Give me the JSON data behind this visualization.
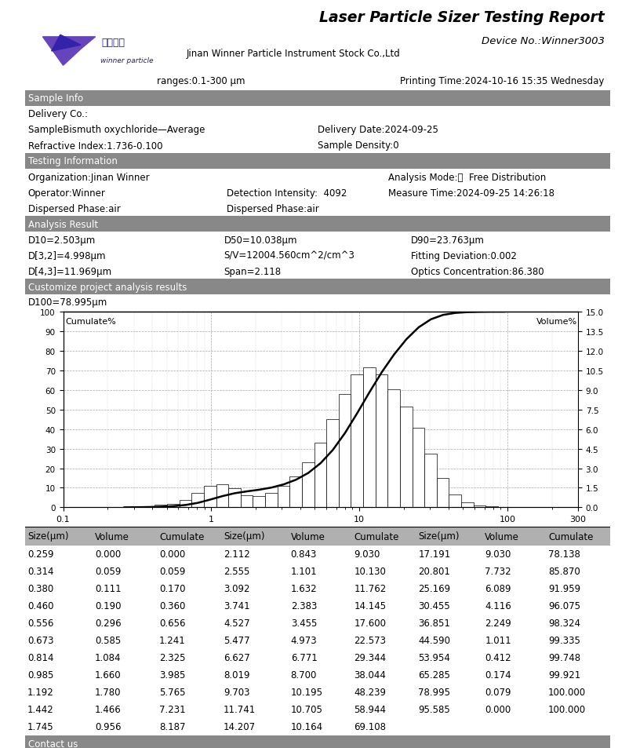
{
  "title": "Laser Particle Sizer Testing Report",
  "device_no": "Device No.:Winner3003",
  "company": "Jinan Winner Particle Instrument Stock Co.,Ltd",
  "ranges": "ranges:0.1-300 μm",
  "printing_time": "Printing Time:2024-10-16 15:35 Wednesday",
  "section_sample": "Sample Info",
  "delivery_co": "Delivery Co.:",
  "sample_name": "SampleBismuth oxychloride—Average",
  "delivery_date": "Delivery Date:2024-09-25",
  "refractive_index": "Refractive Index:1.736-0.100",
  "sample_density": "Sample Density:0",
  "section_testing": "Testing Information",
  "organization": "Organization:Jinan Winner",
  "analysis_mode": "Analysis Mode:：  Free Distribution",
  "operator": "Operator:Winner",
  "detection_intensity": "Detection Intensity:  4092",
  "measure_time": "Measure Time:2024-09-25 14:26:18",
  "dispersed_phase1": "Dispersed Phase:air",
  "dispersed_phase2": "Dispersed Phase:air",
  "section_analysis": "Analysis Result",
  "d10": "D10=2.503μm",
  "d50": "D50=10.038μm",
  "d90": "D90=23.763μm",
  "d32": "D[3,2]=4.998μm",
  "sv": "S/V=12004.560cm^2/cm^3",
  "fitting_deviation": "Fitting Deviation:0.002",
  "d43": "D[4,3]=11.969μm",
  "span": "Span=2.118",
  "optics_concentration": "Optics Concentration:86.380",
  "section_customize": "Customize project analysis results",
  "d100": "D100=78.995μm",
  "section_contact": "Contact us",
  "header_bg": "#888888",
  "sizes": [
    0.259,
    0.314,
    0.38,
    0.46,
    0.556,
    0.673,
    0.814,
    0.985,
    1.192,
    1.442,
    1.745,
    2.112,
    2.555,
    3.092,
    3.741,
    4.527,
    5.477,
    6.627,
    8.019,
    9.703,
    11.741,
    14.207,
    17.191,
    20.801,
    25.169,
    30.455,
    36.851,
    44.59,
    53.954,
    65.285,
    78.995,
    95.585
  ],
  "volumes": [
    0.0,
    0.059,
    0.111,
    0.19,
    0.296,
    0.585,
    1.084,
    1.66,
    1.78,
    1.466,
    0.956,
    0.843,
    1.101,
    1.632,
    2.383,
    3.455,
    4.973,
    6.771,
    8.7,
    10.195,
    10.705,
    10.164,
    9.03,
    7.732,
    6.089,
    4.116,
    2.249,
    1.011,
    0.412,
    0.174,
    0.079,
    0.0
  ],
  "cumulates": [
    0.0,
    0.059,
    0.17,
    0.36,
    0.656,
    1.241,
    2.325,
    3.985,
    5.765,
    7.231,
    8.187,
    9.03,
    10.13,
    11.762,
    14.145,
    17.6,
    22.573,
    29.344,
    38.044,
    48.239,
    58.944,
    69.108,
    78.138,
    85.87,
    91.959,
    96.075,
    98.324,
    99.335,
    99.748,
    99.921,
    100.0,
    100.0
  ],
  "col_headers": [
    "Size(μm)",
    "Volume",
    "Cumulate",
    "Size(μm)",
    "Volume",
    "Cumulate",
    "Size(μm)",
    "Volume",
    "Cumulate"
  ],
  "table_data": [
    [
      [
        "0.259",
        "0.000",
        "0.000"
      ],
      [
        "2.112",
        "0.843",
        "9.030"
      ],
      [
        "17.191",
        "9.030",
        "78.138"
      ]
    ],
    [
      [
        "0.314",
        "0.059",
        "0.059"
      ],
      [
        "2.555",
        "1.101",
        "10.130"
      ],
      [
        "20.801",
        "7.732",
        "85.870"
      ]
    ],
    [
      [
        "0.380",
        "0.111",
        "0.170"
      ],
      [
        "3.092",
        "1.632",
        "11.762"
      ],
      [
        "25.169",
        "6.089",
        "91.959"
      ]
    ],
    [
      [
        "0.460",
        "0.190",
        "0.360"
      ],
      [
        "3.741",
        "2.383",
        "14.145"
      ],
      [
        "30.455",
        "4.116",
        "96.075"
      ]
    ],
    [
      [
        "0.556",
        "0.296",
        "0.656"
      ],
      [
        "4.527",
        "3.455",
        "17.600"
      ],
      [
        "36.851",
        "2.249",
        "98.324"
      ]
    ],
    [
      [
        "0.673",
        "0.585",
        "1.241"
      ],
      [
        "5.477",
        "4.973",
        "22.573"
      ],
      [
        "44.590",
        "1.011",
        "99.335"
      ]
    ],
    [
      [
        "0.814",
        "1.084",
        "2.325"
      ],
      [
        "6.627",
        "6.771",
        "29.344"
      ],
      [
        "53.954",
        "0.412",
        "99.748"
      ]
    ],
    [
      [
        "0.985",
        "1.660",
        "3.985"
      ],
      [
        "8.019",
        "8.700",
        "38.044"
      ],
      [
        "65.285",
        "0.174",
        "99.921"
      ]
    ],
    [
      [
        "1.192",
        "1.780",
        "5.765"
      ],
      [
        "9.703",
        "10.195",
        "48.239"
      ],
      [
        "78.995",
        "0.079",
        "100.000"
      ]
    ],
    [
      [
        "1.442",
        "1.466",
        "7.231"
      ],
      [
        "11.741",
        "10.705",
        "58.944"
      ],
      [
        "95.585",
        "0.000",
        "100.000"
      ]
    ],
    [
      [
        "1.745",
        "0.956",
        "8.187"
      ],
      [
        "14.207",
        "10.164",
        "69.108"
      ],
      [
        "",
        "",
        ""
      ]
    ]
  ]
}
